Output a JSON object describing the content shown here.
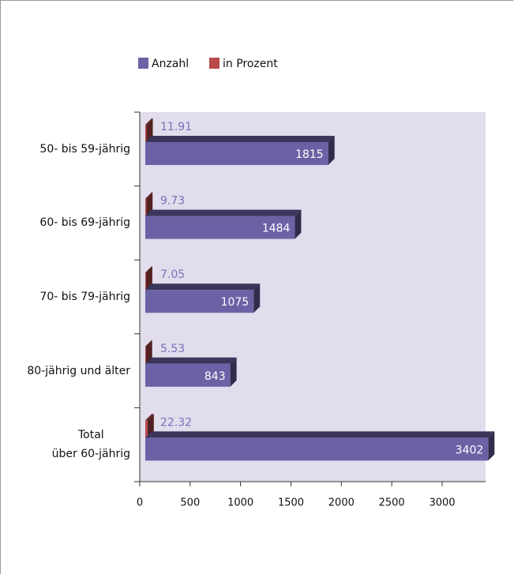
{
  "chart_data": {
    "type": "bar3d",
    "categories": [
      "50- bis 59-jährig",
      "60- bis 69-jährig",
      "70- bis 79-jährig",
      "80-jährig und älter",
      "Total\nüber 60-jährig"
    ],
    "series": [
      {
        "name": "Anzahl",
        "color": "#6b62a6",
        "values": [
          1815,
          1484,
          1075,
          843,
          3402
        ]
      },
      {
        "name": "in Prozent",
        "color": "#b84a4a",
        "values": [
          11.91,
          9.73,
          7.05,
          5.53,
          22.32
        ]
      }
    ],
    "xlim": [
      0,
      3000
    ],
    "xticks": [
      0,
      500,
      1000,
      1500,
      2000,
      2500,
      3000
    ]
  }
}
